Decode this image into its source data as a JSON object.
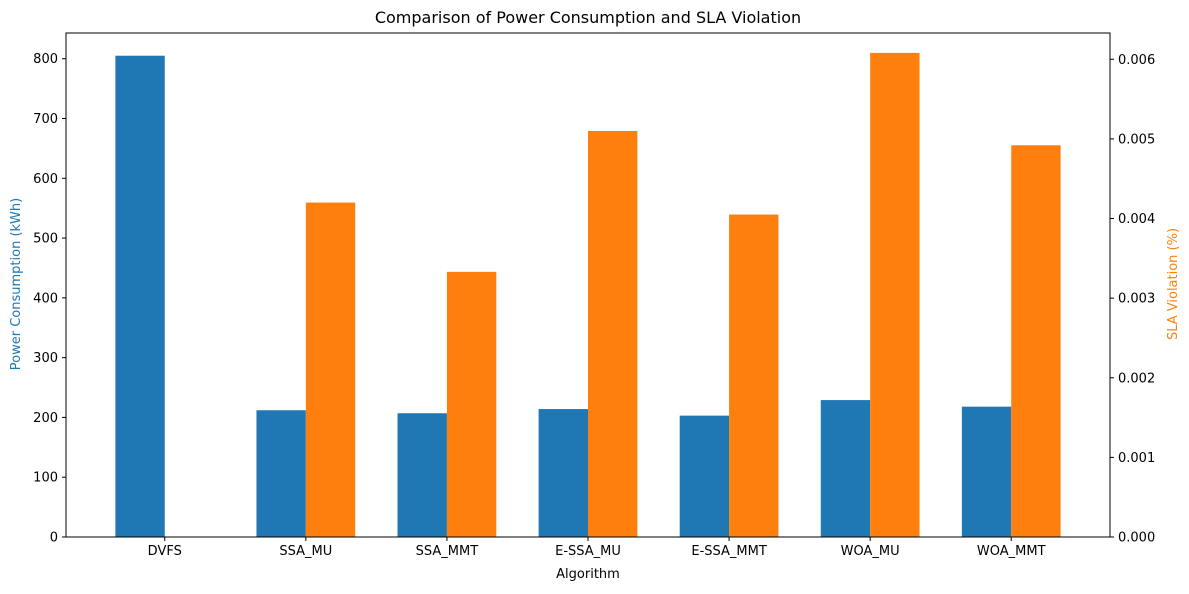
{
  "chart_data": {
    "type": "bar",
    "title": "Comparison of Power Consumption and SLA Violation",
    "xlabel": "Algorithm",
    "categories": [
      "DVFS",
      "SSA_MU",
      "SSA_MMT",
      "E-SSA_MU",
      "E-SSA_MMT",
      "WOA_MU",
      "WOA_MMT"
    ],
    "left_axis": {
      "label": "Power Consumption (kWh)",
      "color": "#1f77b4",
      "ylim": [
        0,
        843
      ],
      "ticks": [
        "0",
        "100",
        "200",
        "300",
        "400",
        "500",
        "600",
        "700",
        "800"
      ]
    },
    "right_axis": {
      "label": "SLA Violation (%)",
      "color": "#ff7f0e",
      "ylim": [
        0,
        0.00633
      ],
      "ticks": [
        "0.000",
        "0.001",
        "0.002",
        "0.003",
        "0.004",
        "0.005",
        "0.006"
      ]
    },
    "series": [
      {
        "axis": "left",
        "color": "#1f77b4",
        "values": [
          805,
          212,
          207,
          214,
          203,
          229,
          218
        ]
      },
      {
        "axis": "right",
        "color": "#ff7f0e",
        "values": [
          0,
          0.0042,
          0.00333,
          0.0051,
          0.00405,
          0.00608,
          0.00492
        ]
      }
    ],
    "grid": false,
    "legend": "none"
  }
}
